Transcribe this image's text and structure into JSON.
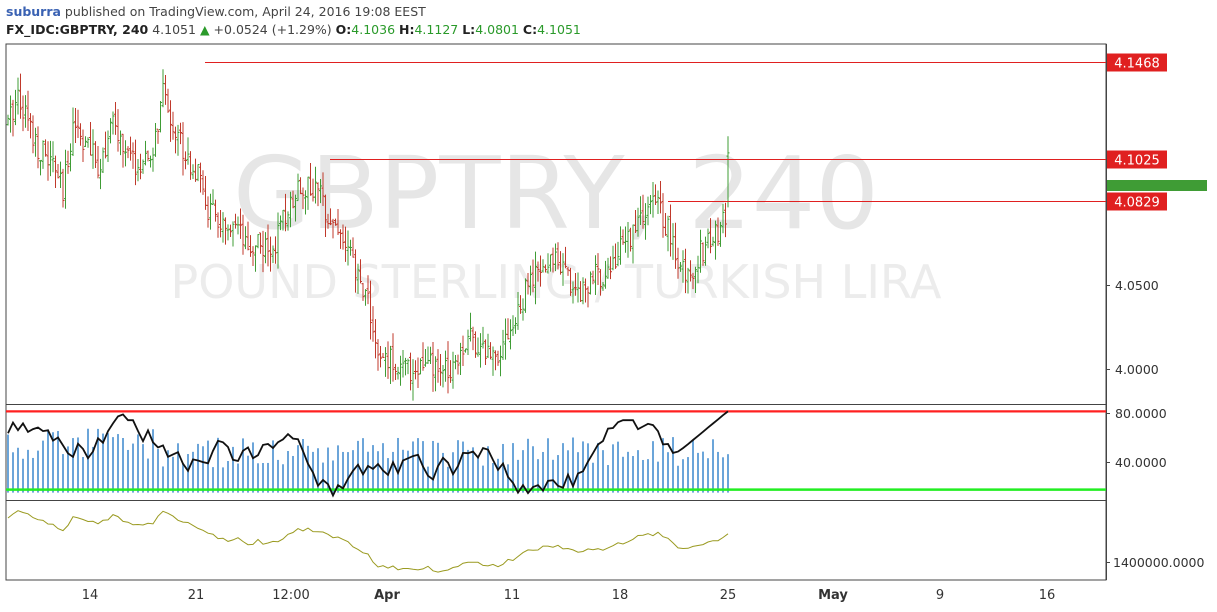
{
  "header": {
    "publisher": "suburra",
    "published_text": " published on TradingView.com, April 24, 2016 19:08 EEST",
    "symbol": "FX_IDC:GBPTRY, 240",
    "last": "4.1051",
    "arrow": "▲",
    "change": "+0.0524 (+1.29%)",
    "o_label": "O:",
    "o_value": "4.1036",
    "h_label": "H:",
    "h_value": "4.1127",
    "l_label": "L:",
    "l_value": "4.0801",
    "c_label": "C:",
    "c_value": "4.1051"
  },
  "watermark": {
    "symbol": "GBPTRY, 240",
    "description": "POUND STERLING / TURKISH LIRA"
  },
  "colors": {
    "up_bar": "#3f9c35",
    "down_bar": "#c0392b",
    "level_line": "#e02020",
    "volume": "#5b9bd5",
    "oscillator_line": "#111111",
    "osc_upper": "#ff2020",
    "osc_lower": "#22ee22",
    "indicator2": "#9a9a20",
    "price_tag_current": "#3f9c35"
  },
  "chart_data": {
    "type": "ohlc",
    "symbol": "FX_IDC:GBPTRY",
    "timeframe": "240",
    "x_tick_labels": [
      "14",
      "21",
      "12:00",
      "Apr",
      "11",
      "18",
      "25",
      "May",
      "9",
      "16"
    ],
    "price_axis": {
      "ticks": [
        "4.0500",
        "4.0000"
      ],
      "range": [
        3.99,
        4.155
      ]
    },
    "horizontal_levels": [
      4.1468,
      4.1025,
      4.0829
    ],
    "current_price": 4.1051,
    "price_path": [
      [
        0,
        4.118
      ],
      [
        4,
        4.133
      ],
      [
        8,
        4.12
      ],
      [
        12,
        4.108
      ],
      [
        16,
        4.102
      ],
      [
        20,
        4.095
      ],
      [
        22,
        4.085
      ],
      [
        26,
        4.12
      ],
      [
        30,
        4.112
      ],
      [
        36,
        4.099
      ],
      [
        42,
        4.118
      ],
      [
        48,
        4.103
      ],
      [
        54,
        4.097
      ],
      [
        58,
        4.105
      ],
      [
        62,
        4.132
      ],
      [
        66,
        4.118
      ],
      [
        72,
        4.103
      ],
      [
        76,
        4.094
      ],
      [
        80,
        4.079
      ],
      [
        84,
        4.074
      ],
      [
        88,
        4.066
      ],
      [
        92,
        4.069
      ],
      [
        96,
        4.058
      ],
      [
        100,
        4.066
      ],
      [
        104,
        4.058
      ],
      [
        108,
        4.067
      ],
      [
        112,
        4.079
      ],
      [
        116,
        4.091
      ],
      [
        120,
        4.089
      ],
      [
        124,
        4.087
      ],
      [
        128,
        4.078
      ],
      [
        132,
        4.07
      ],
      [
        136,
        4.06
      ],
      [
        140,
        4.047
      ],
      [
        144,
        4.039
      ],
      [
        148,
        4.009
      ],
      [
        152,
        4.011
      ],
      [
        156,
        4.008
      ],
      [
        160,
        4.005
      ],
      [
        164,
        4.007
      ],
      [
        168,
        4.008
      ],
      [
        172,
        4.004
      ],
      [
        176,
        4.006
      ],
      [
        180,
        4.013
      ],
      [
        184,
        4.021
      ],
      [
        188,
        4.018
      ],
      [
        192,
        4.013
      ],
      [
        196,
        4.015
      ],
      [
        200,
        4.023
      ],
      [
        204,
        4.03
      ],
      [
        208,
        4.045
      ],
      [
        212,
        4.049
      ],
      [
        216,
        4.053
      ],
      [
        220,
        4.059
      ],
      [
        224,
        4.047
      ],
      [
        228,
        4.042
      ],
      [
        232,
        4.045
      ],
      [
        236,
        4.049
      ],
      [
        240,
        4.051
      ],
      [
        244,
        4.059
      ],
      [
        248,
        4.066
      ],
      [
        252,
        4.073
      ],
      [
        256,
        4.079
      ],
      [
        260,
        4.082
      ],
      [
        264,
        4.07
      ],
      [
        268,
        4.054
      ],
      [
        272,
        4.048
      ],
      [
        276,
        4.058
      ],
      [
        280,
        4.064
      ],
      [
        284,
        4.068
      ],
      [
        288,
        4.081
      ]
    ],
    "oscillator": {
      "axis_ticks": [
        "80.0000",
        "40.0000"
      ],
      "range": [
        20,
        85
      ],
      "upper_band": 80,
      "lower_band": 27
    },
    "indicator2": {
      "axis_ticks": [
        "1400000.0000"
      ]
    }
  }
}
